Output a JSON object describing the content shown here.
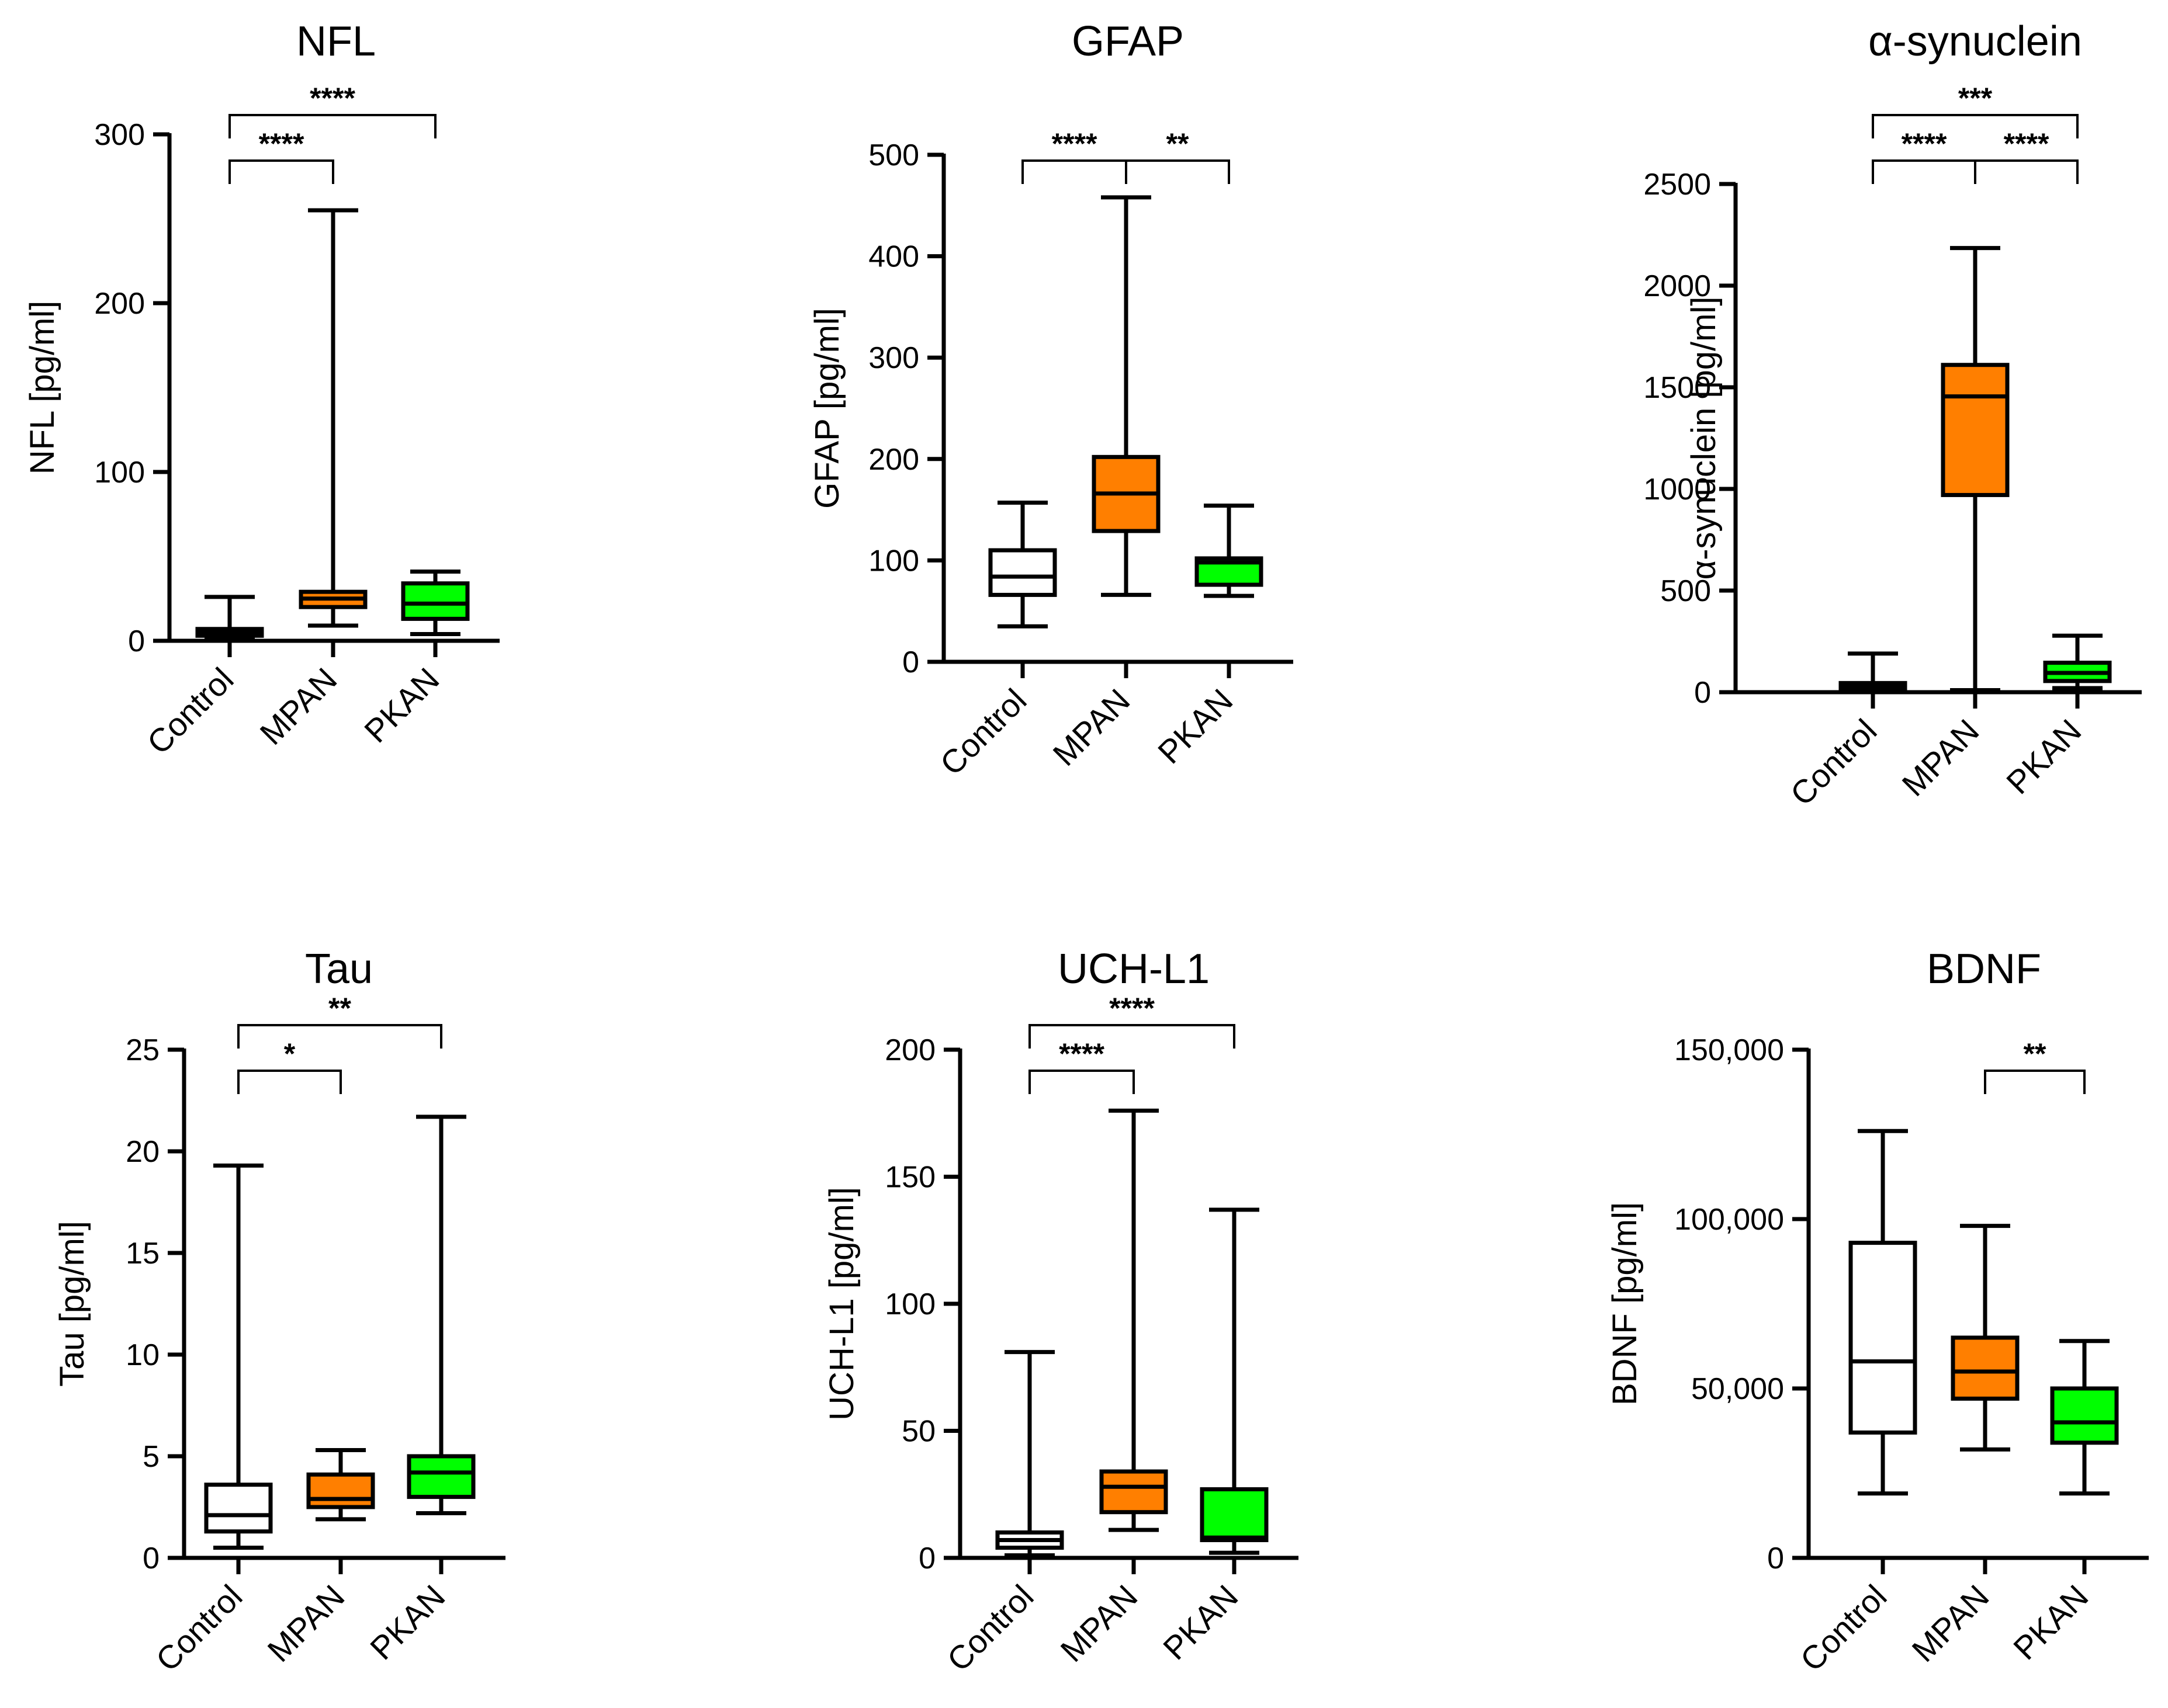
{
  "chart_data": [
    {
      "type": "box",
      "title": "NFL",
      "ylabel": "NFL [pg/ml]",
      "ylim": [
        0,
        300
      ],
      "yticks": [
        0,
        100,
        200,
        300
      ],
      "ytick_labels": [
        "0",
        "100",
        "200",
        "300"
      ],
      "categories": [
        "Control",
        "MPAN",
        "PKAN"
      ],
      "colors": [
        "#ffffff",
        "#ff7f00",
        "#00ff00"
      ],
      "boxes": [
        {
          "min": 2,
          "q1": 3,
          "median": 5,
          "q3": 7,
          "max": 26
        },
        {
          "min": 9,
          "q1": 20,
          "median": 25,
          "q3": 29,
          "max": 255
        },
        {
          "min": 4,
          "q1": 13,
          "median": 22,
          "q3": 34,
          "max": 41
        }
      ],
      "significance": [
        {
          "from": 0,
          "to": 1,
          "label": "****"
        },
        {
          "from": 0,
          "to": 2,
          "label": "****"
        }
      ]
    },
    {
      "type": "box",
      "title": "GFAP",
      "ylabel": "GFAP [pg/ml]",
      "ylim": [
        0,
        500
      ],
      "yticks": [
        0,
        100,
        200,
        300,
        400,
        500
      ],
      "ytick_labels": [
        "0",
        "100",
        "200",
        "300",
        "400",
        "500"
      ],
      "categories": [
        "Control",
        "MPAN",
        "PKAN"
      ],
      "colors": [
        "#ffffff",
        "#ff7f00",
        "#00ff00"
      ],
      "boxes": [
        {
          "min": 35,
          "q1": 66,
          "median": 84,
          "q3": 110,
          "max": 157
        },
        {
          "min": 66,
          "q1": 129,
          "median": 166,
          "q3": 202,
          "max": 458
        },
        {
          "min": 65,
          "q1": 76,
          "median": 98,
          "q3": 102,
          "max": 154
        }
      ],
      "significance": [
        {
          "from": 0,
          "to": 1,
          "label": "****"
        },
        {
          "from": 1,
          "to": 2,
          "label": "**"
        }
      ]
    },
    {
      "type": "box",
      "title": "α-synuclein",
      "ylabel": "α-synuclein [pg/ml]",
      "ylim": [
        0,
        2500
      ],
      "yticks": [
        0,
        500,
        1000,
        1500,
        2000,
        2500
      ],
      "ytick_labels": [
        "0",
        "500",
        "1000",
        "1500",
        "2000",
        "2500"
      ],
      "categories": [
        "Control",
        "MPAN",
        "PKAN"
      ],
      "colors": [
        "#ffffff",
        "#ff7f00",
        "#00ff00"
      ],
      "boxes": [
        {
          "min": 0,
          "q1": 18,
          "median": 30,
          "q3": 45,
          "max": 190
        },
        {
          "min": 10,
          "q1": 970,
          "median": 1455,
          "q3": 1610,
          "max": 2185
        },
        {
          "min": 20,
          "q1": 55,
          "median": 95,
          "q3": 145,
          "max": 278
        }
      ],
      "significance": [
        {
          "from": 0,
          "to": 1,
          "label": "****"
        },
        {
          "from": 1,
          "to": 2,
          "label": "****"
        },
        {
          "from": 0,
          "to": 2,
          "label": "***"
        }
      ]
    },
    {
      "type": "box",
      "title": "Tau",
      "ylabel": "Tau [pg/ml]",
      "ylim": [
        0,
        25
      ],
      "yticks": [
        0,
        5,
        10,
        15,
        20,
        25
      ],
      "ytick_labels": [
        "0",
        "5",
        "10",
        "15",
        "20",
        "25"
      ],
      "categories": [
        "Control",
        "MPAN",
        "PKAN"
      ],
      "colors": [
        "#ffffff",
        "#ff7f00",
        "#00ff00"
      ],
      "boxes": [
        {
          "min": 0.5,
          "q1": 1.3,
          "median": 2.1,
          "q3": 3.6,
          "max": 19.3
        },
        {
          "min": 1.9,
          "q1": 2.5,
          "median": 2.9,
          "q3": 4.1,
          "max": 5.3
        },
        {
          "min": 2.2,
          "q1": 3.0,
          "median": 4.2,
          "q3": 5.0,
          "max": 21.7
        }
      ],
      "significance": [
        {
          "from": 0,
          "to": 1,
          "label": "*"
        },
        {
          "from": 0,
          "to": 2,
          "label": "**"
        }
      ]
    },
    {
      "type": "box",
      "title": "UCH-L1",
      "ylabel": "UCH-L1 [pg/ml]",
      "ylim": [
        0,
        200
      ],
      "yticks": [
        0,
        50,
        100,
        150,
        200
      ],
      "ytick_labels": [
        "0",
        "50",
        "100",
        "150",
        "200"
      ],
      "categories": [
        "Control",
        "MPAN",
        "PKAN"
      ],
      "colors": [
        "#ffffff",
        "#ff7f00",
        "#00ff00"
      ],
      "boxes": [
        {
          "min": 1,
          "q1": 4,
          "median": 7,
          "q3": 10,
          "max": 81
        },
        {
          "min": 11,
          "q1": 18,
          "median": 28,
          "q3": 34,
          "max": 176
        },
        {
          "min": 2,
          "q1": 7,
          "median": 8,
          "q3": 27,
          "max": 137
        }
      ],
      "significance": [
        {
          "from": 0,
          "to": 1,
          "label": "****"
        },
        {
          "from": 0,
          "to": 2,
          "label": "****"
        }
      ]
    },
    {
      "type": "box",
      "title": "BDNF",
      "ylabel": "BDNF [pg/ml]",
      "ylim": [
        0,
        150000
      ],
      "yticks": [
        0,
        50000,
        100000,
        150000
      ],
      "ytick_labels": [
        "0",
        "50,000",
        "100,000",
        "150,000"
      ],
      "categories": [
        "Control",
        "MPAN",
        "PKAN"
      ],
      "colors": [
        "#ffffff",
        "#ff7f00",
        "#00ff00"
      ],
      "boxes": [
        {
          "min": 19000,
          "q1": 37000,
          "median": 58000,
          "q3": 93000,
          "max": 126000
        },
        {
          "min": 32000,
          "q1": 47000,
          "median": 55000,
          "q3": 65000,
          "max": 98000
        },
        {
          "min": 19000,
          "q1": 34000,
          "median": 40000,
          "q3": 50000,
          "max": 64000
        }
      ],
      "significance": [
        {
          "from": 1,
          "to": 2,
          "label": "**"
        }
      ]
    }
  ]
}
